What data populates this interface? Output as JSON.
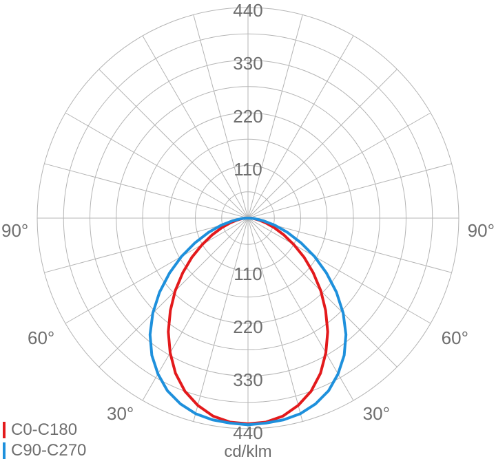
{
  "chart_data": {
    "type": "polar",
    "radial_unit": "cd/klm",
    "radial_max": 440,
    "radial_tick_labels": [
      "110",
      "220",
      "330",
      "440"
    ],
    "angle_labels": {
      "left": [
        "90°",
        "60°",
        "30°"
      ],
      "right": [
        "90°",
        "60°",
        "30°"
      ]
    },
    "grid": true,
    "legend_position": "bottom-left",
    "series": [
      {
        "name": "C0-C180",
        "color": "#e31a1c",
        "angles_deg": [
          0,
          5,
          10,
          15,
          20,
          25,
          30,
          35,
          40,
          45,
          50,
          55,
          60,
          65,
          70,
          75,
          80,
          85,
          90
        ],
        "values": [
          430,
          428,
          420,
          405,
          385,
          358,
          325,
          290,
          252,
          215,
          178,
          143,
          110,
          82,
          58,
          38,
          23,
          12,
          6
        ]
      },
      {
        "name": "C90-C270",
        "color": "#1e90dc",
        "angles_deg": [
          0,
          5,
          10,
          15,
          20,
          25,
          30,
          35,
          40,
          45,
          50,
          55,
          60,
          65,
          70,
          75,
          80,
          85,
          90
        ],
        "values": [
          432,
          430,
          428,
          423,
          413,
          398,
          376,
          350,
          318,
          281,
          241,
          200,
          160,
          122,
          88,
          58,
          33,
          15,
          4
        ]
      }
    ]
  }
}
